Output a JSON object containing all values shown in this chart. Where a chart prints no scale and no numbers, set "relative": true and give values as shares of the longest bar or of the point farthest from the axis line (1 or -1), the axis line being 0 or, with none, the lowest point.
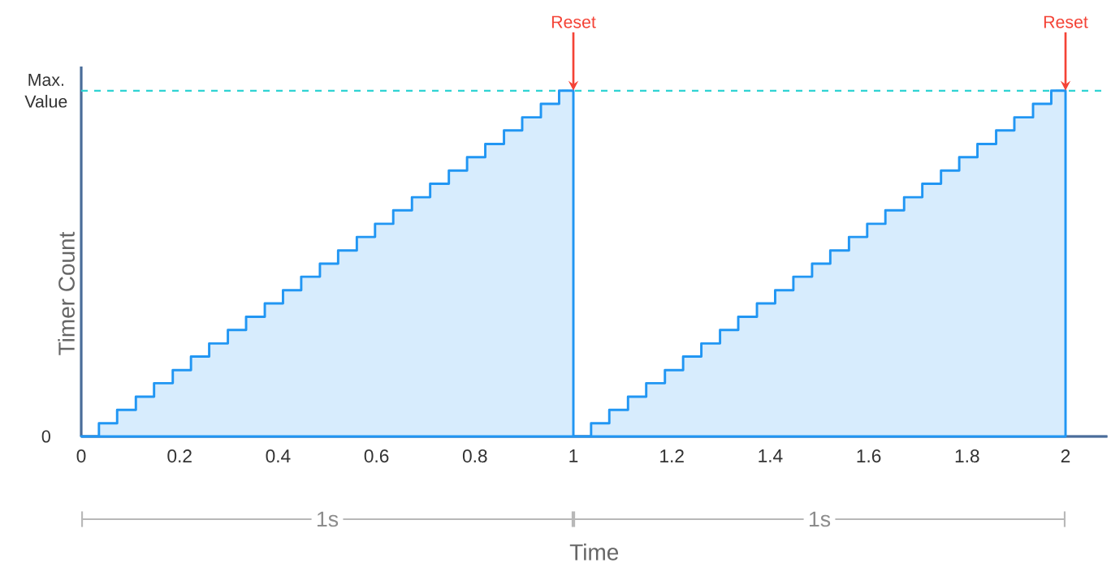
{
  "chart_data": {
    "type": "area",
    "xlabel": "Time",
    "ylabel": "Timer Count",
    "relative": true,
    "x": [
      0,
      0.036,
      0.073,
      0.111,
      0.148,
      0.186,
      0.223,
      0.26,
      0.298,
      0.335,
      0.373,
      0.41,
      0.447,
      0.485,
      0.522,
      0.56,
      0.597,
      0.634,
      0.672,
      0.709,
      0.747,
      0.784,
      0.821,
      0.859,
      0.896,
      0.934,
      0.971,
      1,
      1.036,
      1.073,
      1.111,
      1.148,
      1.186,
      1.223,
      1.26,
      1.298,
      1.335,
      1.373,
      1.41,
      1.447,
      1.485,
      1.522,
      1.56,
      1.597,
      1.634,
      1.672,
      1.709,
      1.747,
      1.784,
      1.821,
      1.859,
      1.896,
      1.934,
      1.971,
      2
    ],
    "series": [
      {
        "color": "#2196f3",
        "values": [
          0,
          0.038,
          0.077,
          0.115,
          0.154,
          0.192,
          0.231,
          0.269,
          0.308,
          0.346,
          0.385,
          0.423,
          0.462,
          0.5,
          0.538,
          0.577,
          0.615,
          0.654,
          0.692,
          0.731,
          0.769,
          0.808,
          0.846,
          0.885,
          0.923,
          0.962,
          1,
          0,
          0.038,
          0.077,
          0.115,
          0.154,
          0.192,
          0.231,
          0.269,
          0.308,
          0.346,
          0.385,
          0.423,
          0.462,
          0.5,
          0.538,
          0.577,
          0.615,
          0.654,
          0.692,
          0.731,
          0.769,
          0.808,
          0.846,
          0.885,
          0.923,
          0.962,
          1,
          0
        ]
      }
    ],
    "xlim": [
      0,
      2.085
    ],
    "xticks": [
      0,
      0.2,
      0.4,
      0.6,
      0.8,
      1,
      1.2,
      1.4,
      1.6,
      1.8,
      2
    ],
    "ref_lines": [
      {
        "axis": "y",
        "value": 0,
        "label": "0",
        "color": "#4a6d9a",
        "line_style": "solid"
      },
      {
        "axis": "y",
        "value": 1,
        "label": "Max. Value",
        "color": "#2ed3d3",
        "line_style": "dashed"
      }
    ],
    "annotations": [
      {
        "text": "Reset",
        "x": 1,
        "y": 1
      },
      {
        "text": "Reset",
        "x": 2,
        "y": 1
      },
      "1s",
      "1s"
    ]
  }
}
